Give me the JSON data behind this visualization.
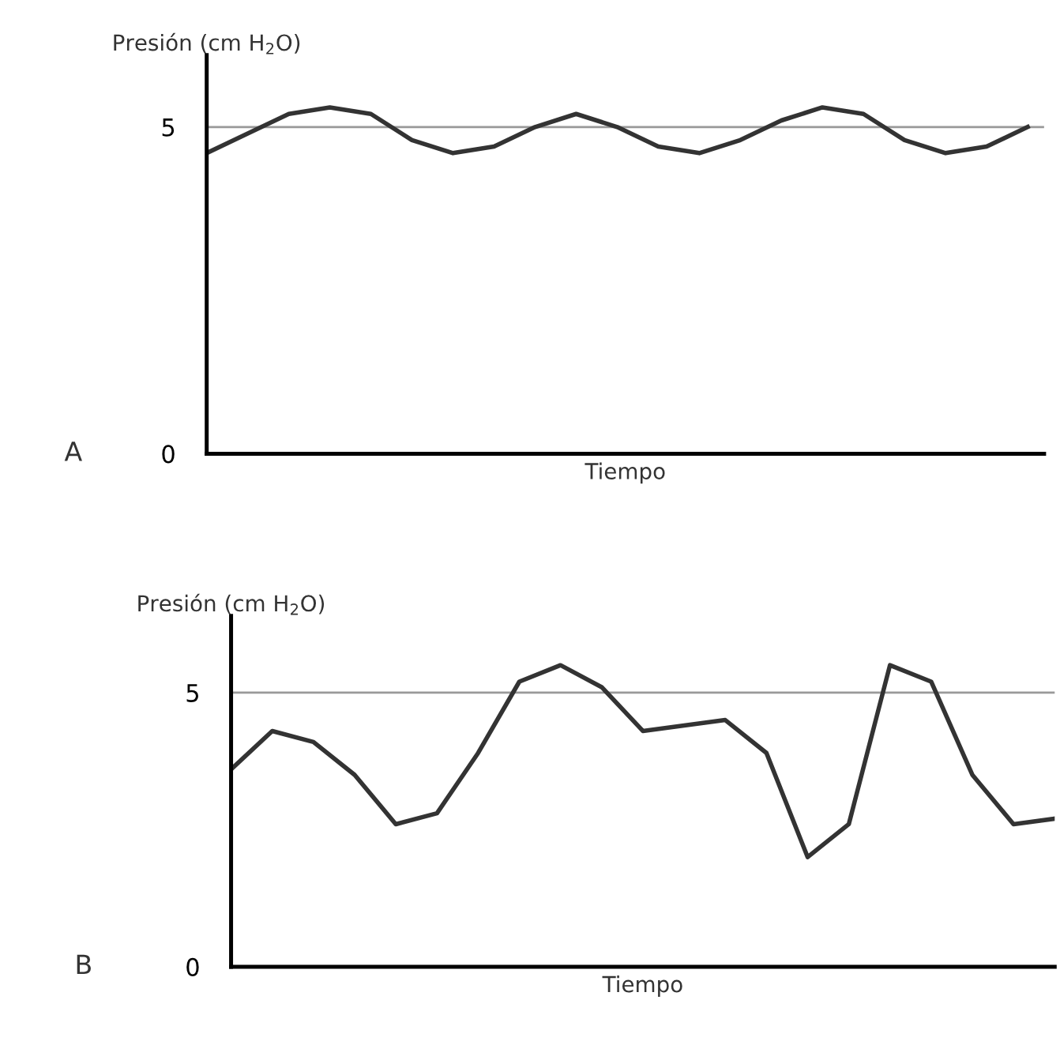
{
  "chart_data": [
    {
      "type": "line",
      "ylabel": "Presión (cm H$_{2}$O)",
      "xlabel": "Tiempo",
      "annotations": [
        "A"
      ],
      "categories": [
        null,
        null,
        null,
        null,
        null,
        null,
        null,
        null,
        null,
        null,
        null,
        null,
        null,
        null,
        null,
        null,
        null,
        null,
        null,
        null,
        null
      ],
      "series": [
        {
          "color": "#333333",
          "values": [
            4.6,
            4.9,
            5.2,
            5.3,
            5.2,
            4.8,
            4.6,
            4.7,
            5.0,
            5.2,
            5.0,
            4.7,
            4.6,
            4.8,
            5.1,
            5.3,
            5.2,
            4.8,
            4.6,
            4.7,
            5.0
          ]
        }
      ],
      "ylim": [
        0,
        6.1
      ],
      "yticks": [
        0,
        5
      ],
      "ref_lines": [
        {
          "axis": "y",
          "value": 5,
          "color": "#999999"
        }
      ],
      "tick_labels": "y",
      "grid": false,
      "legend": false,
      "marker": "none",
      "line_style": "solid"
    },
    {
      "type": "line",
      "ylabel": "Presión (cm H$_{2}$O)",
      "xlabel": "Tiempo",
      "annotations": [
        "B"
      ],
      "categories": [
        null,
        null,
        null,
        null,
        null,
        null,
        null,
        null,
        null,
        null,
        null,
        null,
        null,
        null,
        null,
        null,
        null,
        null,
        null,
        null,
        null
      ],
      "series": [
        {
          "color": "#333333",
          "values": [
            3.6,
            4.3,
            4.1,
            3.5,
            2.6,
            2.8,
            3.9,
            5.2,
            5.5,
            5.1,
            4.3,
            4.4,
            4.5,
            3.9,
            2.0,
            2.6,
            5.5,
            5.2,
            3.5,
            2.6,
            2.7
          ]
        }
      ],
      "ylim": [
        0,
        6.4
      ],
      "yticks": [
        0,
        5
      ],
      "ref_lines": [
        {
          "axis": "y",
          "value": 5,
          "color": "#999999"
        }
      ],
      "tick_labels": "y",
      "grid": false,
      "legend": false,
      "marker": "none",
      "line_style": "solid"
    }
  ]
}
